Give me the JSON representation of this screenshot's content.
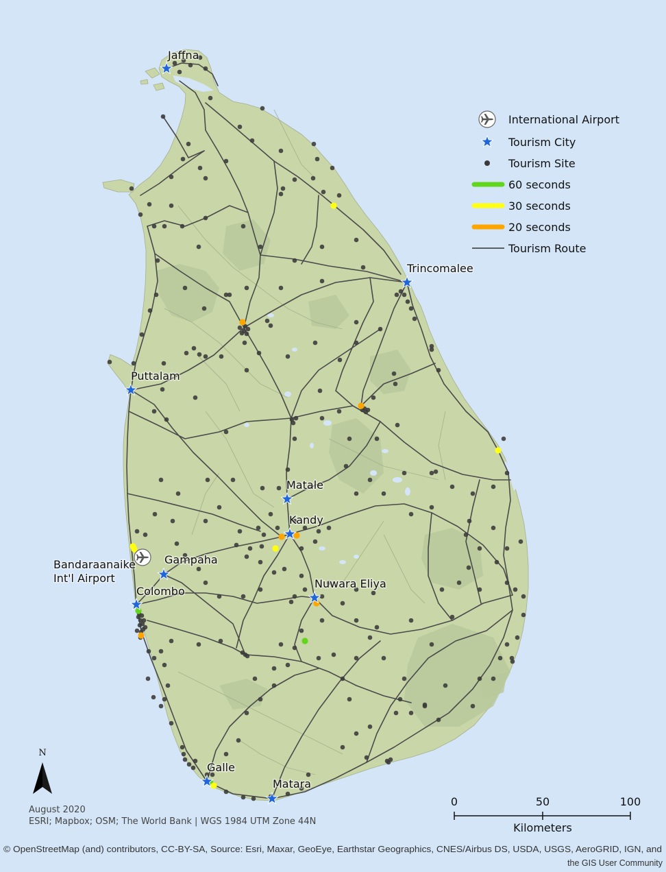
{
  "map": {
    "background_color": "#d4e5f7",
    "land_color": "#c9d6a8",
    "forest_color": "#b8c99b",
    "coast_color": "#a3b08e"
  },
  "cities": [
    {
      "name": "Jaffna"
    },
    {
      "name": "Trincomalee"
    },
    {
      "name": "Puttalam"
    },
    {
      "name": "Matale"
    },
    {
      "name": "Kandy"
    },
    {
      "name": "Gampaha"
    },
    {
      "name": "Colombo"
    },
    {
      "name": "Nuwara Eliya"
    },
    {
      "name": "Galle"
    },
    {
      "name": "Matara"
    }
  ],
  "airport": {
    "label_line1": "Bandaraanaike",
    "label_line2": "Int'l Airport",
    "icon": "airplane-icon"
  },
  "legend": {
    "items": [
      {
        "label": "International Airport",
        "icon": "airplane-icon"
      },
      {
        "label": "Tourism City",
        "icon": "star-icon",
        "color": "#1f66d9"
      },
      {
        "label": "Tourism Site",
        "icon": "dot-icon",
        "color": "#3a3a3a"
      },
      {
        "label": "60 seconds",
        "icon": "line-icon",
        "color": "#62d61e"
      },
      {
        "label": "30 seconds",
        "icon": "line-icon",
        "color": "#ffff14"
      },
      {
        "label": "20 seconds",
        "icon": "line-icon",
        "color": "#ffa500"
      },
      {
        "label": "Tourism Route",
        "icon": "line-icon",
        "color": "#4a4a4a"
      }
    ]
  },
  "north_arrow": {
    "label": "N",
    "icon": "north-arrow-icon"
  },
  "scale_bar": {
    "ticks": [
      "0",
      "50",
      "100"
    ],
    "unit": "Kilometers"
  },
  "credits": {
    "date": "August 2020",
    "sources": "ESRI; Mapbox; OSM; The World Bank | WGS 1984 UTM Zone 44N"
  },
  "attribution": {
    "line1": "© OpenStreetMap (and) contributors, CC-BY-SA, Source: Esri, Maxar, GeoEye, Earthstar Geographics, CNES/Airbus DS, USDA, USGS, AeroGRID, IGN, and",
    "line2": "the GIS User Community"
  }
}
